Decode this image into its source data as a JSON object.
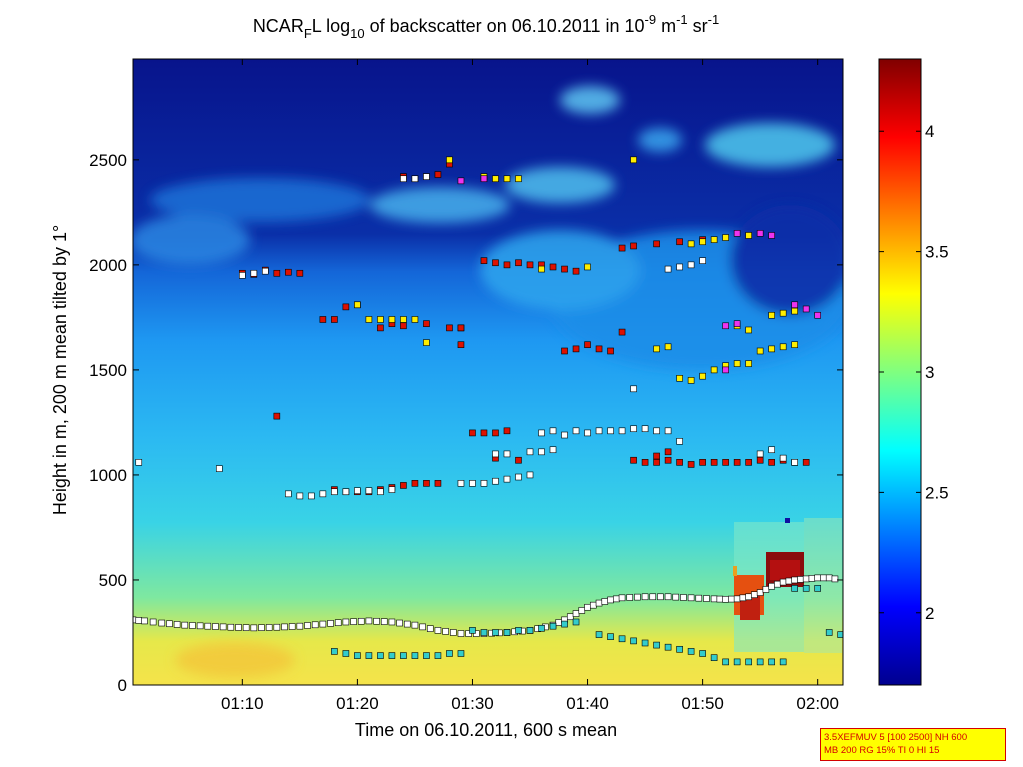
{
  "chart_data": {
    "type": "heatmap",
    "title_main": "NCAR",
    "title_sub": "F",
    "title_l": "L log",
    "title_log_sub": "10",
    "title_mid": " of backscatter on 06.10.2011 in 10",
    "title_exp1": "-9",
    "title_unit_m": " m",
    "title_exp2": "-1",
    "title_unit_sr": " sr",
    "title_exp3": "-1",
    "xlabel": "Time on 06.10.2011, 600 s mean",
    "ylabel": "Height in m, 200 m mean tilted by 1°",
    "xlim_minutes": [
      60.5,
      122.2
    ],
    "ylim": [
      0,
      2980
    ],
    "xticks": [
      {
        "minute": 70,
        "label": "01:10"
      },
      {
        "minute": 80,
        "label": "01:20"
      },
      {
        "minute": 90,
        "label": "01:30"
      },
      {
        "minute": 100,
        "label": "01:40"
      },
      {
        "minute": 110,
        "label": "01:50"
      },
      {
        "minute": 120,
        "label": "02:00"
      }
    ],
    "yticks": [
      {
        "value": 0,
        "label": "0"
      },
      {
        "value": 500,
        "label": "500"
      },
      {
        "value": 1000,
        "label": "1000"
      },
      {
        "value": 1500,
        "label": "1500"
      },
      {
        "value": 2000,
        "label": "2000"
      },
      {
        "value": 2500,
        "label": "2500"
      }
    ],
    "colorbar": {
      "range": [
        1.7,
        4.3
      ],
      "ticks": [
        {
          "value": 2,
          "label": "2"
        },
        {
          "value": 2.5,
          "label": "2.5"
        },
        {
          "value": 3,
          "label": "3"
        },
        {
          "value": 3.5,
          "label": "3.5"
        },
        {
          "value": 4,
          "label": "4"
        }
      ],
      "colormap": "jet"
    },
    "layer_series": [
      {
        "name": "red markers",
        "color": "#dd1100",
        "points": [
          [
            70,
            1960
          ],
          [
            71,
            1955
          ],
          [
            72,
            1975
          ],
          [
            73,
            1960
          ],
          [
            74,
            1965
          ],
          [
            75,
            1960
          ],
          [
            77,
            1740
          ],
          [
            78,
            1740
          ],
          [
            79,
            1800
          ],
          [
            80,
            1810
          ],
          [
            84,
            1710
          ],
          [
            86,
            1720
          ],
          [
            88,
            1700
          ],
          [
            89,
            1700
          ],
          [
            91,
            2020
          ],
          [
            92,
            2010
          ],
          [
            93,
            2000
          ],
          [
            94,
            2010
          ],
          [
            95,
            2000
          ],
          [
            96,
            2000
          ],
          [
            97,
            1990
          ],
          [
            98,
            1980
          ],
          [
            99,
            1970
          ],
          [
            103,
            2080
          ],
          [
            104,
            2090
          ],
          [
            106,
            2100
          ],
          [
            108,
            2110
          ],
          [
            110,
            2120
          ],
          [
            73,
            1280
          ],
          [
            82,
            1700
          ],
          [
            83,
            1720
          ],
          [
            84,
            2420
          ],
          [
            85,
            2410
          ],
          [
            86,
            2420
          ],
          [
            87,
            2430
          ],
          [
            88,
            2480
          ],
          [
            89,
            1700
          ],
          [
            89,
            1620
          ],
          [
            90,
            1200
          ],
          [
            91,
            1200
          ],
          [
            92,
            1200
          ],
          [
            93,
            1210
          ],
          [
            78,
            930
          ],
          [
            79,
            920
          ],
          [
            80,
            920
          ],
          [
            81,
            920
          ],
          [
            82,
            930
          ],
          [
            83,
            940
          ],
          [
            84,
            950
          ],
          [
            85,
            960
          ],
          [
            86,
            960
          ],
          [
            87,
            960
          ],
          [
            94,
            1070
          ],
          [
            92,
            1080
          ],
          [
            100,
            1620
          ],
          [
            101,
            1600
          ],
          [
            102,
            1590
          ],
          [
            103,
            1680
          ],
          [
            98,
            1590
          ],
          [
            99,
            1600
          ],
          [
            104,
            1070
          ],
          [
            105,
            1060
          ],
          [
            106,
            1060
          ],
          [
            107,
            1070
          ],
          [
            108,
            1060
          ],
          [
            109,
            1050
          ],
          [
            110,
            1060
          ],
          [
            111,
            1060
          ],
          [
            112,
            1060
          ],
          [
            113,
            1060
          ],
          [
            114,
            1060
          ],
          [
            115,
            1070
          ],
          [
            116,
            1060
          ],
          [
            117,
            1070
          ],
          [
            118,
            1060
          ],
          [
            119,
            1060
          ],
          [
            106,
            1090
          ],
          [
            107,
            1110
          ]
        ]
      },
      {
        "name": "white markers",
        "color": "#ffffff",
        "points": [
          [
            61,
            1060
          ],
          [
            68,
            1030
          ],
          [
            70,
            1950
          ],
          [
            71,
            1960
          ],
          [
            72,
            1970
          ],
          [
            74,
            910
          ],
          [
            75,
            900
          ],
          [
            76,
            900
          ],
          [
            77,
            910
          ],
          [
            78,
            920
          ],
          [
            79,
            920
          ],
          [
            80,
            925
          ],
          [
            81,
            925
          ],
          [
            82,
            920
          ],
          [
            83,
            930
          ],
          [
            84,
            2410
          ],
          [
            85,
            2410
          ],
          [
            86,
            2420
          ],
          [
            89,
            960
          ],
          [
            90,
            960
          ],
          [
            91,
            960
          ],
          [
            92,
            970
          ],
          [
            93,
            980
          ],
          [
            94,
            990
          ],
          [
            95,
            1000
          ],
          [
            96,
            1110
          ],
          [
            97,
            1120
          ],
          [
            98,
            1190
          ],
          [
            99,
            1210
          ],
          [
            100,
            1200
          ],
          [
            101,
            1210
          ],
          [
            102,
            1210
          ],
          [
            103,
            1210
          ],
          [
            104,
            1220
          ],
          [
            105,
            1220
          ],
          [
            106,
            1210
          ],
          [
            107,
            1210
          ],
          [
            108,
            1160
          ],
          [
            92,
            1100
          ],
          [
            93,
            1100
          ],
          [
            95,
            1110
          ],
          [
            96,
            1200
          ],
          [
            97,
            1210
          ],
          [
            104,
            1410
          ],
          [
            107,
            1980
          ],
          [
            108,
            1990
          ],
          [
            109,
            2000
          ],
          [
            110,
            2020
          ],
          [
            115,
            1100
          ],
          [
            116,
            1120
          ],
          [
            117,
            1080
          ],
          [
            118,
            1060
          ]
        ]
      },
      {
        "name": "yellow markers",
        "color": "#ffee00",
        "points": [
          [
            80,
            1810
          ],
          [
            81,
            1740
          ],
          [
            82,
            1740
          ],
          [
            83,
            1740
          ],
          [
            84,
            1740
          ],
          [
            85,
            1740
          ],
          [
            86,
            1630
          ],
          [
            91,
            2420
          ],
          [
            92,
            2410
          ],
          [
            93,
            2410
          ],
          [
            94,
            2410
          ],
          [
            88,
            2500
          ],
          [
            96,
            1980
          ],
          [
            100,
            1990
          ],
          [
            104,
            2500
          ],
          [
            106,
            1600
          ],
          [
            107,
            1610
          ],
          [
            108,
            1460
          ],
          [
            109,
            1450
          ],
          [
            110,
            1470
          ],
          [
            111,
            1500
          ],
          [
            112,
            1520
          ],
          [
            113,
            1530
          ],
          [
            114,
            1530
          ],
          [
            115,
            1590
          ],
          [
            116,
            1600
          ],
          [
            117,
            1610
          ],
          [
            118,
            1620
          ],
          [
            113,
            1710
          ],
          [
            114,
            1690
          ],
          [
            116,
            1760
          ],
          [
            117,
            1770
          ],
          [
            118,
            1780
          ],
          [
            109,
            2100
          ],
          [
            110,
            2110
          ],
          [
            111,
            2120
          ],
          [
            112,
            2130
          ],
          [
            114,
            2140
          ]
        ]
      },
      {
        "name": "magenta markers",
        "color": "#ee33ee",
        "points": [
          [
            89,
            2400
          ],
          [
            91,
            2410
          ],
          [
            112,
            1710
          ],
          [
            113,
            1720
          ],
          [
            112,
            1500
          ],
          [
            113,
            2150
          ],
          [
            115,
            2150
          ],
          [
            116,
            2140
          ],
          [
            118,
            1810
          ],
          [
            119,
            1790
          ],
          [
            120,
            1760
          ]
        ]
      },
      {
        "name": "cyan markers",
        "color": "#33cccc",
        "points": [
          [
            78,
            160
          ],
          [
            79,
            150
          ],
          [
            80,
            140
          ],
          [
            81,
            140
          ],
          [
            82,
            140
          ],
          [
            83,
            140
          ],
          [
            84,
            140
          ],
          [
            85,
            140
          ],
          [
            86,
            140
          ],
          [
            87,
            140
          ],
          [
            88,
            150
          ],
          [
            89,
            150
          ],
          [
            90,
            260
          ],
          [
            91,
            250
          ],
          [
            92,
            250
          ],
          [
            93,
            250
          ],
          [
            94,
            260
          ],
          [
            95,
            260
          ],
          [
            96,
            270
          ],
          [
            97,
            280
          ],
          [
            98,
            290
          ],
          [
            99,
            300
          ],
          [
            101,
            240
          ],
          [
            102,
            230
          ],
          [
            103,
            220
          ],
          [
            104,
            210
          ],
          [
            105,
            200
          ],
          [
            106,
            190
          ],
          [
            107,
            180
          ],
          [
            108,
            170
          ],
          [
            109,
            160
          ],
          [
            110,
            150
          ],
          [
            111,
            130
          ],
          [
            112,
            110
          ],
          [
            113,
            110
          ],
          [
            114,
            110
          ],
          [
            115,
            110
          ],
          [
            116,
            110
          ],
          [
            117,
            110
          ],
          [
            118,
            460
          ],
          [
            119,
            460
          ],
          [
            120,
            460
          ],
          [
            121,
            250
          ],
          [
            122,
            240
          ]
        ]
      }
    ],
    "boundary_layer_series": {
      "name": "white boundary markers",
      "points": [
        [
          60.5,
          310
        ],
        [
          61.5,
          305
        ],
        [
          63,
          295
        ],
        [
          65,
          285
        ],
        [
          67,
          280
        ],
        [
          69,
          275
        ],
        [
          71,
          272
        ],
        [
          73,
          275
        ],
        [
          75,
          280
        ],
        [
          77,
          290
        ],
        [
          79,
          300
        ],
        [
          81,
          305
        ],
        [
          83,
          300
        ],
        [
          85,
          285
        ],
        [
          87,
          260
        ],
        [
          89,
          245
        ],
        [
          91,
          245
        ],
        [
          93,
          250
        ],
        [
          95,
          260
        ],
        [
          97,
          285
        ],
        [
          98,
          310
        ],
        [
          99,
          340
        ],
        [
          100,
          370
        ],
        [
          101,
          390
        ],
        [
          102,
          405
        ],
        [
          103,
          415
        ],
        [
          105,
          420
        ],
        [
          107,
          420
        ],
        [
          109,
          415
        ],
        [
          111,
          410
        ],
        [
          112,
          408
        ],
        [
          113,
          410
        ],
        [
          114,
          420
        ],
        [
          115,
          440
        ],
        [
          116,
          470
        ],
        [
          117,
          490
        ],
        [
          118,
          500
        ],
        [
          119,
          505
        ],
        [
          120,
          510
        ],
        [
          121,
          510
        ],
        [
          122,
          500
        ]
      ]
    }
  },
  "info_box": {
    "line1": "3.5XEFMUV 5 [100 2500] NH 600",
    "line2": "MB 200 RG 15% TI 0 HI 15"
  }
}
